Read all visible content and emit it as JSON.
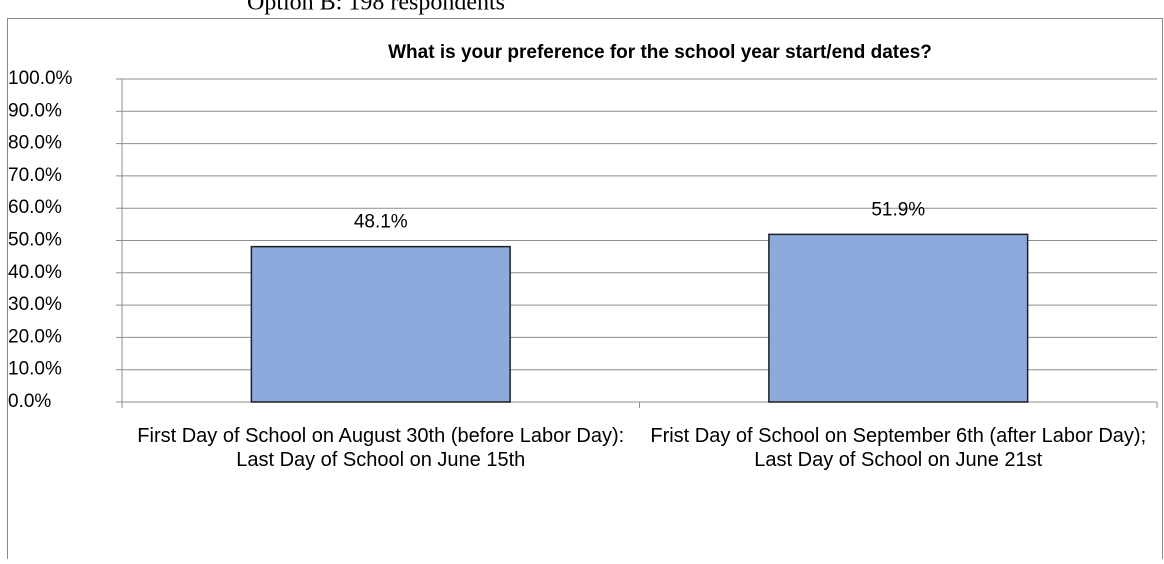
{
  "caption": "Option B: 198 respondents",
  "chart_data": {
    "type": "bar",
    "title": "What is your preference for the school year start/end dates?",
    "categories": [
      "First Day of School on August 30th (before Labor Day): Last Day of School on June 15th",
      "Frist Day of School on September 6th (after Labor Day); Last Day of School on June 21st"
    ],
    "values": [
      48.1,
      51.9
    ],
    "value_labels": [
      "48.1%",
      "51.9%"
    ],
    "color": "#8eaadc",
    "ylim": [
      0,
      100
    ],
    "yticks": [
      {
        "value": 0,
        "label": "0.0%"
      },
      {
        "value": 10,
        "label": "10.0%"
      },
      {
        "value": 20,
        "label": "20.0%"
      },
      {
        "value": 30,
        "label": "30.0%"
      },
      {
        "value": 40,
        "label": "40.0%"
      },
      {
        "value": 50,
        "label": "50.0%"
      },
      {
        "value": 60,
        "label": "60.0%"
      },
      {
        "value": 70,
        "label": "70.0%"
      },
      {
        "value": 80,
        "label": "80.0%"
      },
      {
        "value": 90,
        "label": "90.0%"
      },
      {
        "value": 100,
        "label": "100.0%"
      }
    ],
    "grid": true
  }
}
